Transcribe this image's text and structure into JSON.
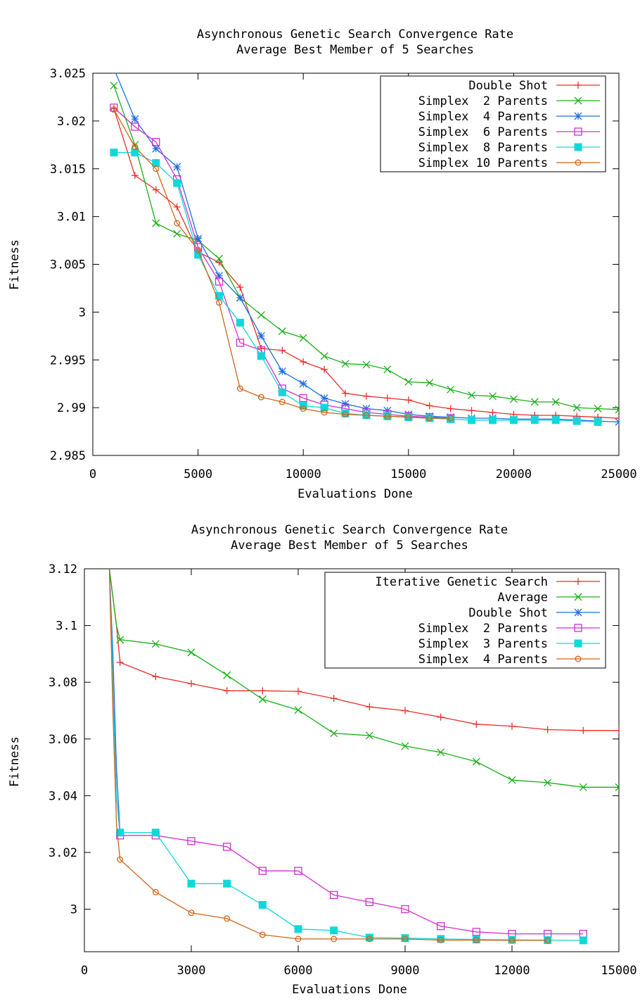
{
  "chart_data": [
    {
      "type": "line",
      "title": "Asynchronous Genetic Search Convergence Rate",
      "subtitle": "Average Best Member of 5 Searches",
      "xlabel": "Evaluations Done",
      "ylabel": "Fitness",
      "xlim": [
        0,
        25000
      ],
      "ylim": [
        2.985,
        3.025
      ],
      "xticks": [
        0,
        5000,
        10000,
        15000,
        20000,
        25000
      ],
      "xtick_labels": [
        "0",
        "5000",
        "10000",
        "15000",
        "20000",
        "25000"
      ],
      "yticks": [
        2.985,
        2.99,
        2.995,
        3,
        3.005,
        3.01,
        3.015,
        3.02,
        3.025
      ],
      "ytick_labels": [
        "2.985",
        "2.99",
        "2.995",
        "3",
        "3.005",
        "3.01",
        "3.015",
        "3.02",
        "3.025"
      ],
      "legend_position": "top-right",
      "series": [
        {
          "name": "Double Shot",
          "color": "#e8302a",
          "marker": "plus",
          "x": [
            1000,
            2000,
            3000,
            4000,
            5000,
            6000,
            7000,
            8000,
            9000,
            10000,
            11000,
            12000,
            13000,
            14000,
            15000,
            16000,
            17000,
            18000,
            19000,
            20000,
            21000,
            22000,
            23000,
            24000,
            25000
          ],
          "y": [
            3.0213,
            3.0143,
            3.0128,
            3.011,
            3.0063,
            3.0052,
            3.0026,
            2.9962,
            2.996,
            2.9948,
            2.994,
            2.9915,
            2.9912,
            2.991,
            2.9908,
            2.9902,
            2.9899,
            2.9897,
            2.9895,
            2.9893,
            2.9892,
            2.9892,
            2.9891,
            2.989,
            2.9889
          ]
        },
        {
          "name": "Simplex  2 Parents",
          "color": "#18b018",
          "marker": "x",
          "x": [
            1000,
            2000,
            3000,
            4000,
            5000,
            6000,
            7000,
            8000,
            9000,
            10000,
            11000,
            12000,
            13000,
            14000,
            15000,
            16000,
            17000,
            18000,
            19000,
            20000,
            21000,
            22000,
            23000,
            24000,
            25000
          ],
          "y": [
            3.0237,
            3.0175,
            3.0093,
            3.0082,
            3.0075,
            3.0056,
            3.0015,
            2.9997,
            2.998,
            2.9973,
            2.9954,
            2.9946,
            2.9945,
            2.994,
            2.9927,
            2.9926,
            2.9919,
            2.9913,
            2.9912,
            2.9909,
            2.9906,
            2.9906,
            2.99,
            2.9899,
            2.9898
          ]
        },
        {
          "name": "Simplex  4 Parents",
          "color": "#1e6fe0",
          "marker": "star",
          "x": [
            1000,
            2000,
            3000,
            4000,
            5000,
            6000,
            7000,
            8000,
            9000,
            10000,
            11000,
            12000,
            13000,
            14000,
            15000,
            16000,
            17000,
            18000,
            19000,
            20000,
            21000,
            22000,
            23000,
            24000,
            25000
          ],
          "y": [
            3.0255,
            3.0202,
            3.0171,
            3.0152,
            3.0077,
            3.0038,
            3.0015,
            2.9975,
            2.9938,
            2.9925,
            2.991,
            2.9904,
            2.9899,
            2.9897,
            2.9893,
            2.9891,
            2.989,
            2.9889,
            2.9889,
            2.9888,
            2.9888,
            2.9888,
            2.9887,
            2.9886,
            2.9885
          ]
        },
        {
          "name": "Simplex  6 Parents",
          "color": "#d030d0",
          "marker": "square",
          "x": [
            1000,
            2000,
            3000,
            4000,
            5000,
            6000,
            7000,
            8000,
            9000,
            10000,
            11000,
            12000,
            13000,
            14000,
            15000,
            16000,
            17000
          ],
          "y": [
            3.0214,
            3.0194,
            3.0178,
            3.0139,
            3.0068,
            3.0032,
            2.9968,
            2.996,
            2.992,
            2.991,
            2.9903,
            2.9899,
            2.9895,
            2.9893,
            2.9891,
            2.989,
            2.9889
          ]
        },
        {
          "name": "Simplex  8 Parents",
          "color": "#10d8d8",
          "marker": "filled-square",
          "x": [
            1000,
            2000,
            3000,
            4000,
            5000,
            6000,
            7000,
            8000,
            9000,
            10000,
            11000,
            12000,
            13000,
            14000,
            15000,
            16000,
            17000,
            18000,
            19000,
            20000,
            21000,
            22000,
            23000,
            24000
          ],
          "y": [
            3.0167,
            3.0167,
            3.0156,
            3.0135,
            3.006,
            3.0017,
            2.9989,
            2.9954,
            2.9916,
            2.9902,
            2.99,
            2.9894,
            2.9892,
            2.9891,
            2.989,
            2.9889,
            2.9888,
            2.9887,
            2.9887,
            2.9887,
            2.9887,
            2.9887,
            2.9886,
            2.9885
          ]
        },
        {
          "name": "Simplex 10 Parents",
          "color": "#d06418",
          "marker": "circle",
          "x": [
            1000,
            2000,
            3000,
            4000,
            5000,
            6000,
            7000,
            8000,
            9000,
            10000,
            11000,
            12000,
            13000,
            14000,
            15000,
            16000,
            17000
          ],
          "y": [
            3.0212,
            3.0173,
            3.015,
            3.0093,
            3.0065,
            3.001,
            2.992,
            2.9911,
            2.9906,
            2.9899,
            2.9895,
            2.9893,
            2.9892,
            2.9891,
            2.989,
            2.9889,
            2.9889
          ]
        }
      ]
    },
    {
      "type": "line",
      "title": "Asynchronous Genetic Search Convergence Rate",
      "subtitle": "Average Best Member of 5 Searches",
      "xlabel": "Evaluations Done",
      "ylabel": "Fitness",
      "xlim": [
        0,
        15000
      ],
      "ylim": [
        2.985,
        3.12
      ],
      "xticks": [
        0,
        3000,
        6000,
        9000,
        12000,
        15000
      ],
      "xtick_labels": [
        "0",
        "3000",
        "6000",
        "9000",
        "12000",
        "15000"
      ],
      "yticks": [
        3,
        3.02,
        3.04,
        3.06,
        3.08,
        3.1,
        3.12
      ],
      "ytick_labels": [
        "3",
        "3.02",
        "3.04",
        "3.06",
        "3.08",
        "3.1",
        "3.12"
      ],
      "legend_position": "top-right",
      "series": [
        {
          "name": "Iterative Genetic Search",
          "color": "#e8302a",
          "marker": "plus",
          "x": [
            700,
            900,
            1000,
            2000,
            3000,
            4000,
            5000,
            6000,
            7000,
            8000,
            9000,
            10000,
            11000,
            12000,
            13000,
            14000,
            15000
          ],
          "y": [
            3.12,
            3.1,
            3.087,
            3.082,
            3.0795,
            3.077,
            3.077,
            3.0768,
            3.0743,
            3.0713,
            3.07,
            3.0677,
            3.0652,
            3.0645,
            3.0633,
            3.063,
            3.063
          ]
        },
        {
          "name": "Average",
          "color": "#18b018",
          "marker": "x",
          "x": [
            700,
            900,
            1000,
            2000,
            3000,
            4000,
            5000,
            6000,
            7000,
            8000,
            9000,
            10000,
            11000,
            12000,
            13000,
            14000,
            15000
          ],
          "y": [
            3.12,
            3.1,
            3.095,
            3.0935,
            3.0905,
            3.0825,
            3.074,
            3.0702,
            3.062,
            3.0612,
            3.0575,
            3.0553,
            3.052,
            3.0455,
            3.0446,
            3.043,
            3.043
          ]
        },
        {
          "name": "Double Shot",
          "color": "#1e6fe0",
          "marker": "star",
          "x": [
            700,
            800,
            900,
            1000
          ],
          "y": [
            3.12,
            3.09,
            3.05,
            3.027
          ]
        },
        {
          "name": "Simplex  2 Parents",
          "color": "#d030d0",
          "marker": "square",
          "x": [
            700,
            800,
            900,
            1000,
            2000,
            3000,
            4000,
            5000,
            6000,
            7000,
            8000,
            9000,
            10000,
            11000,
            12000,
            13000,
            14000
          ],
          "y": [
            3.12,
            3.08,
            3.04,
            3.026,
            3.026,
            3.024,
            3.022,
            3.0135,
            3.0135,
            3.005,
            3.0025,
            3.0,
            2.994,
            2.992,
            2.9913,
            2.9913,
            2.9913
          ]
        },
        {
          "name": "Simplex  3 Parents",
          "color": "#10d8d8",
          "marker": "filled-square",
          "x": [
            700,
            800,
            900,
            1000,
            2000,
            3000,
            4000,
            5000,
            6000,
            7000,
            8000,
            9000,
            10000,
            11000,
            12000,
            13000,
            14000
          ],
          "y": [
            3.12,
            3.08,
            3.04,
            3.027,
            3.027,
            3.009,
            3.009,
            3.0015,
            2.993,
            2.9925,
            2.99,
            2.9898,
            2.9895,
            2.9893,
            2.9892,
            2.9891,
            2.989
          ]
        },
        {
          "name": "Simplex  4 Parents",
          "color": "#d06418",
          "marker": "circle",
          "x": [
            700,
            800,
            900,
            1000,
            2000,
            3000,
            4000,
            5000,
            6000,
            7000,
            8000,
            9000,
            10000,
            11000,
            12000,
            13000
          ],
          "y": [
            3.12,
            3.07,
            3.03,
            3.0175,
            3.006,
            2.9987,
            2.9967,
            2.991,
            2.9895,
            2.9895,
            2.9895,
            2.9895,
            2.9891,
            2.9891,
            2.989,
            2.989
          ]
        }
      ]
    }
  ]
}
